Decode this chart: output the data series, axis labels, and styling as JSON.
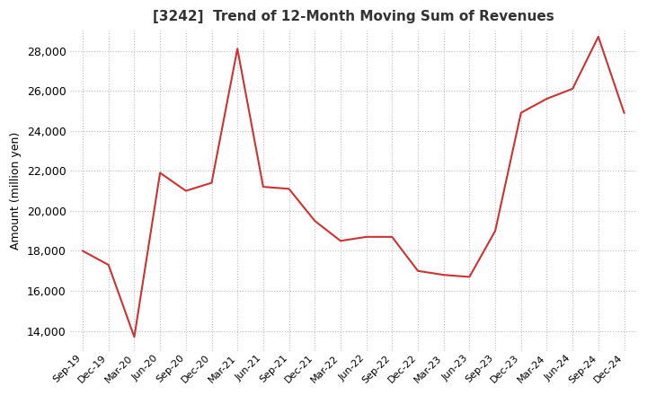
{
  "title": "[3242]  Trend of 12-Month Moving Sum of Revenues",
  "ylabel": "Amount (million yen)",
  "line_color": "#cc3333",
  "background_color": "#ffffff",
  "grid_color": "#bbbbbb",
  "ylim": [
    13000,
    29000
  ],
  "yticks": [
    14000,
    16000,
    18000,
    20000,
    22000,
    24000,
    26000,
    28000
  ],
  "x_labels": [
    "Sep-19",
    "Dec-19",
    "Mar-20",
    "Jun-20",
    "Sep-20",
    "Dec-20",
    "Mar-21",
    "Jun-21",
    "Sep-21",
    "Dec-21",
    "Mar-22",
    "Jun-22",
    "Sep-22",
    "Dec-22",
    "Mar-23",
    "Jun-23",
    "Sep-23",
    "Dec-23",
    "Mar-24",
    "Jun-24",
    "Sep-24",
    "Dec-24"
  ],
  "values": [
    18000,
    17300,
    13700,
    21900,
    21000,
    21400,
    28100,
    21200,
    21100,
    19500,
    18500,
    18700,
    18700,
    17000,
    16800,
    16700,
    19000,
    24900,
    25600,
    26100,
    28700,
    24900
  ]
}
